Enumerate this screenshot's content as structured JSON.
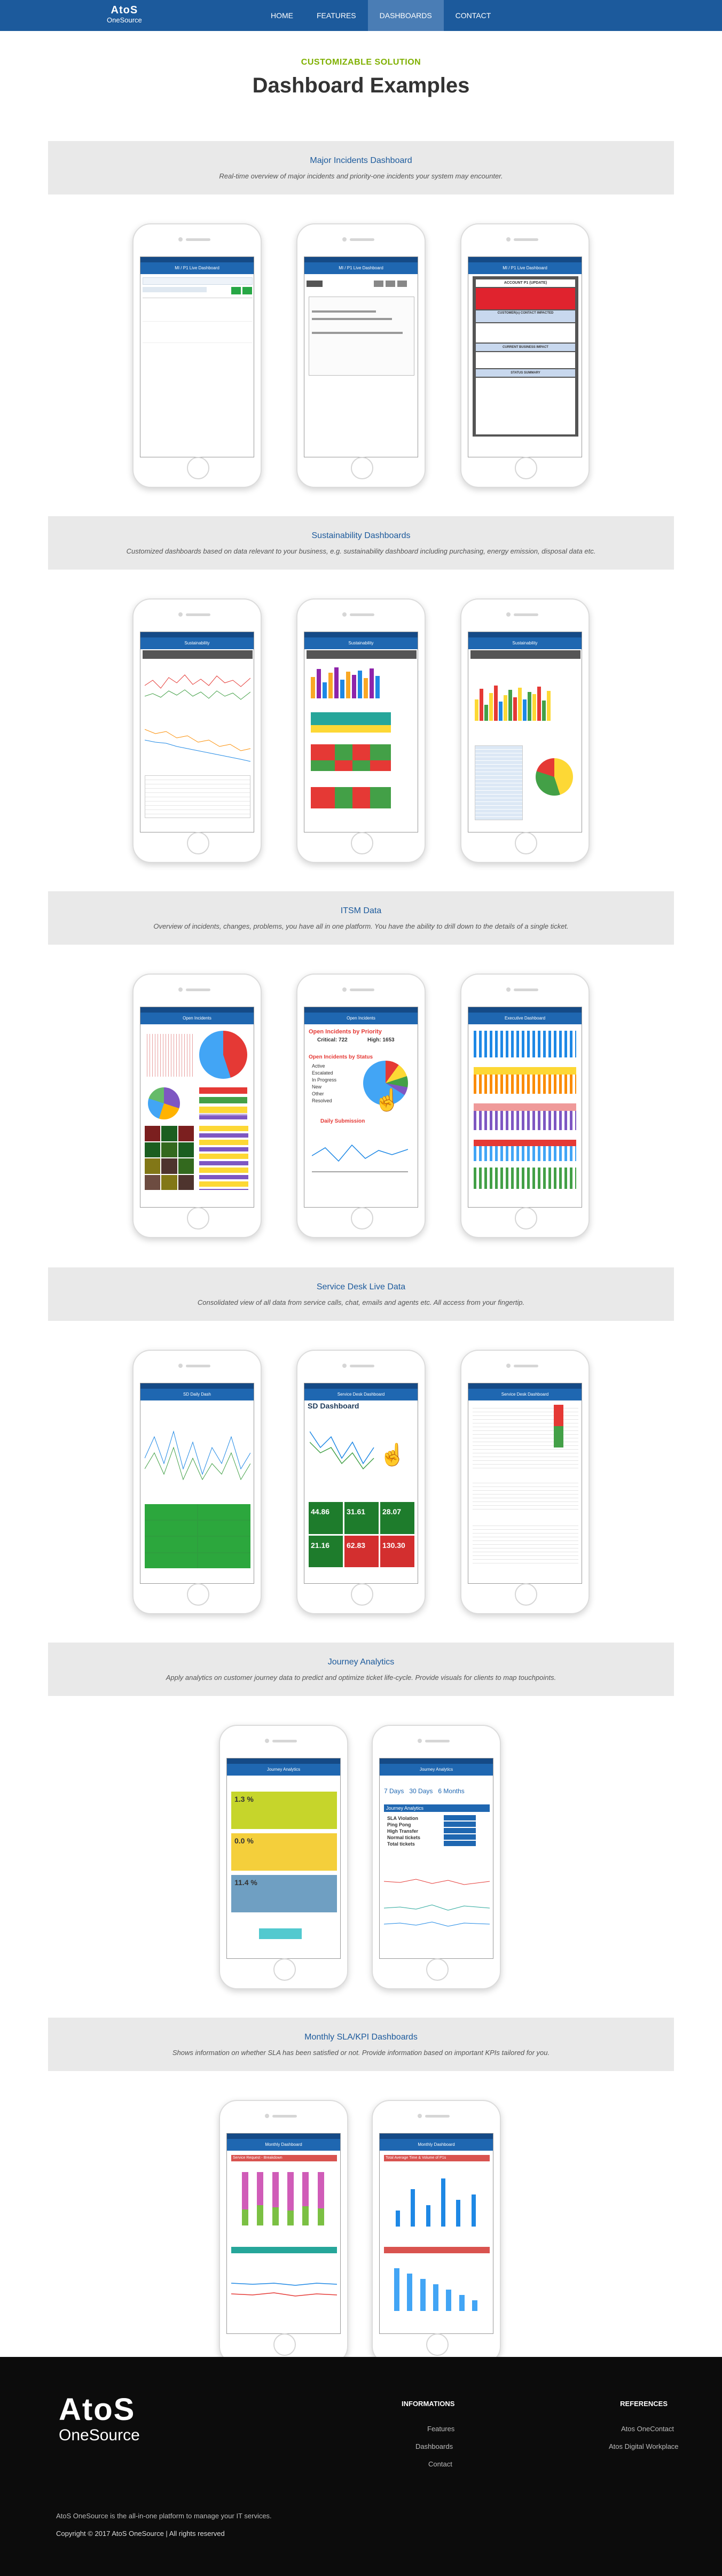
{
  "nav": {
    "logo_line1": "AtoS",
    "logo_line2": "OneSource",
    "items": [
      "HOME",
      "FEATURES",
      "DASHBOARDS",
      "CONTACT"
    ]
  },
  "hero": {
    "kicker": "CUSTOMIZABLE SOLUTION",
    "title": "Dashboard Examples"
  },
  "sections": [
    {
      "title": "Major Incidents Dashboard",
      "desc": "Real-time overview of major incidents and priority-one incidents your system may encounter.",
      "screens": [
        "MI / P1 Live Dashboard",
        "MI / P1 Live Dashboard",
        "MI / P1 Live Dashboard"
      ]
    },
    {
      "title": "Sustainability Dashboards",
      "desc": "Customized dashboards based on data relevant to your business, e.g. sustainability dashboard including purchasing, energy emission, disposal data etc.",
      "screens": [
        "Sustainability",
        "Sustainability",
        "Sustainability"
      ]
    },
    {
      "title": "ITSM Data",
      "desc": "Overview of incidents, changes, problems, you have all in one platform. You have the ability to drill down to the details of a single ticket.",
      "screens": [
        "Open Incidents",
        "Open Incidents",
        "Executive Dashboard"
      ]
    },
    {
      "title": "Service Desk Live Data",
      "desc": "Consolidated view of all data from service calls, chat, emails and agents etc. All access from your fingertip.",
      "screens": [
        "SD Daily Dash",
        "Service Desk Dashboard",
        "Service Desk Dashboard"
      ]
    },
    {
      "title": "Journey Analytics",
      "desc": "Apply analytics on customer journey data to predict and optimize ticket life-cycle. Provide visuals for clients to map touchpoints.",
      "screens": [
        "Journey Analytics",
        "Journey Analytics"
      ]
    },
    {
      "title": "Monthly SLA/KPI Dashboards",
      "desc": "Shows information on whether SLA has been satisfied or not. Provide information based on important KPIs tailored for you.",
      "screens": [
        "Monthly Dashboard",
        "Monthly Dashboard"
      ]
    }
  ],
  "phone_text": {
    "mi_tile1": "ACCOUNT P1 (UPDATE)",
    "mi_tile2": "CUSTOMER(s) CONTACT IMPACTED",
    "mi_tile3": "CURRENT BUSINESS IMPACT",
    "mi_tile4": "STATUS SUMMARY",
    "oi_title": "Open Incidents by Priority",
    "oi_crit": "Critical: 722",
    "oi_high": "High: 1653",
    "oi_status": "Open Incidents by Status",
    "oi_legend": [
      "Active",
      "Escalated",
      "In Progress",
      "New",
      "Other",
      "Resolved"
    ],
    "oi_daily": "Daily Submission",
    "sd_dash": "SD Dashboard",
    "sd_tiles": [
      "44.86",
      "31.61",
      "28.07",
      "21.16",
      "62.83",
      "130.30"
    ],
    "ja_kpis": [
      "1.3 %",
      "0.0 %",
      "11.4 %"
    ],
    "ja_filters": [
      "7 Days",
      "30 Days",
      "6 Months"
    ],
    "ja_table_head": "Journey Analytics",
    "ja_rows": [
      "SLA Violation",
      "Ping Pong",
      "High Transfer",
      "Normal tickets",
      "Total tickets"
    ],
    "sla_title1": "Service Request - Breakdown",
    "sla_title2": "Total Average Time & Volume of P1s"
  },
  "footer": {
    "logo_line1": "AtoS",
    "logo_line2": "OneSource",
    "tagline": "AtoS OneSource is the all-in-one platform to manage your IT services.",
    "copyright": "Copyright © 2017 AtoS OneSource | All rights reserved",
    "col1_head": "INFORMATIONS",
    "col1": [
      "Features",
      "Dashboards",
      "Contact"
    ],
    "col2_head": "REFERENCES",
    "col2": [
      "Atos OneContact",
      "Atos Digital Workplace"
    ]
  },
  "colors": {
    "nav": "#1c5a9c",
    "kicker": "#7fb000",
    "footer": "#0c0c0c"
  }
}
